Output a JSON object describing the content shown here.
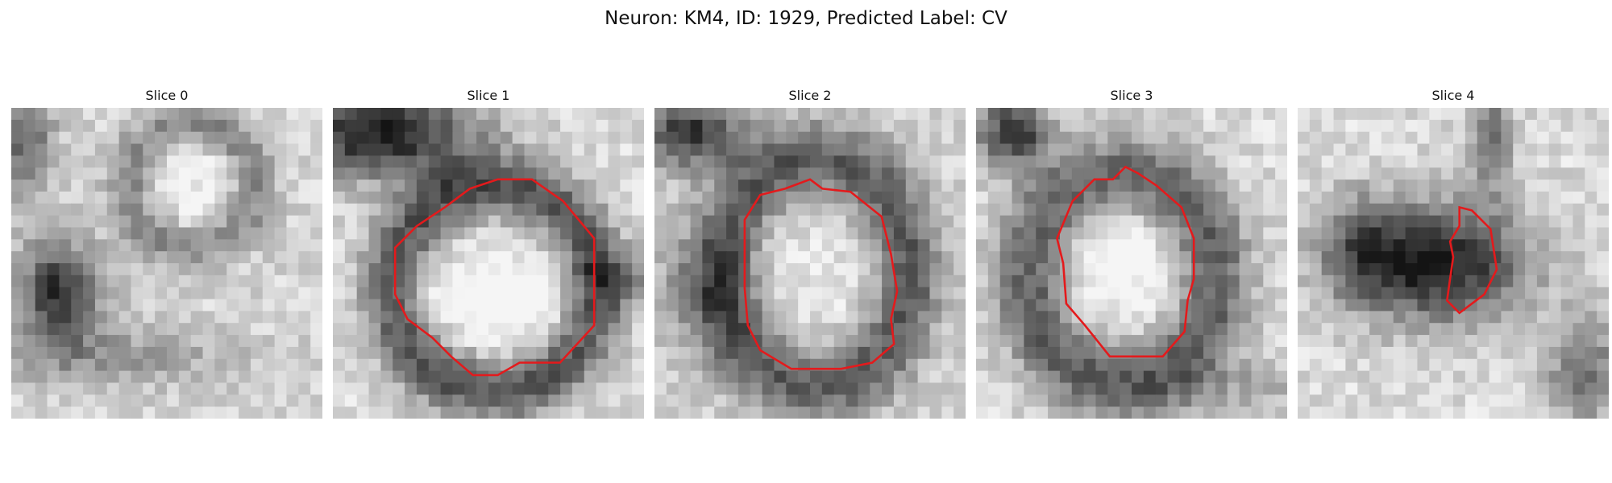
{
  "figure": {
    "title": "Neuron: KM4, ID: 1929, Predicted Label: CV"
  },
  "panels": [
    {
      "title": "Slice 0",
      "has_contour": false
    },
    {
      "title": "Slice 1",
      "has_contour": true
    },
    {
      "title": "Slice 2",
      "has_contour": true
    },
    {
      "title": "Slice 3",
      "has_contour": true
    },
    {
      "title": "Slice 4",
      "has_contour": true
    }
  ],
  "colors": {
    "contour": "#e41a1c",
    "background": "#ffffff"
  },
  "image": {
    "colormap": "grayscale",
    "grid": "26x26 pixels"
  }
}
